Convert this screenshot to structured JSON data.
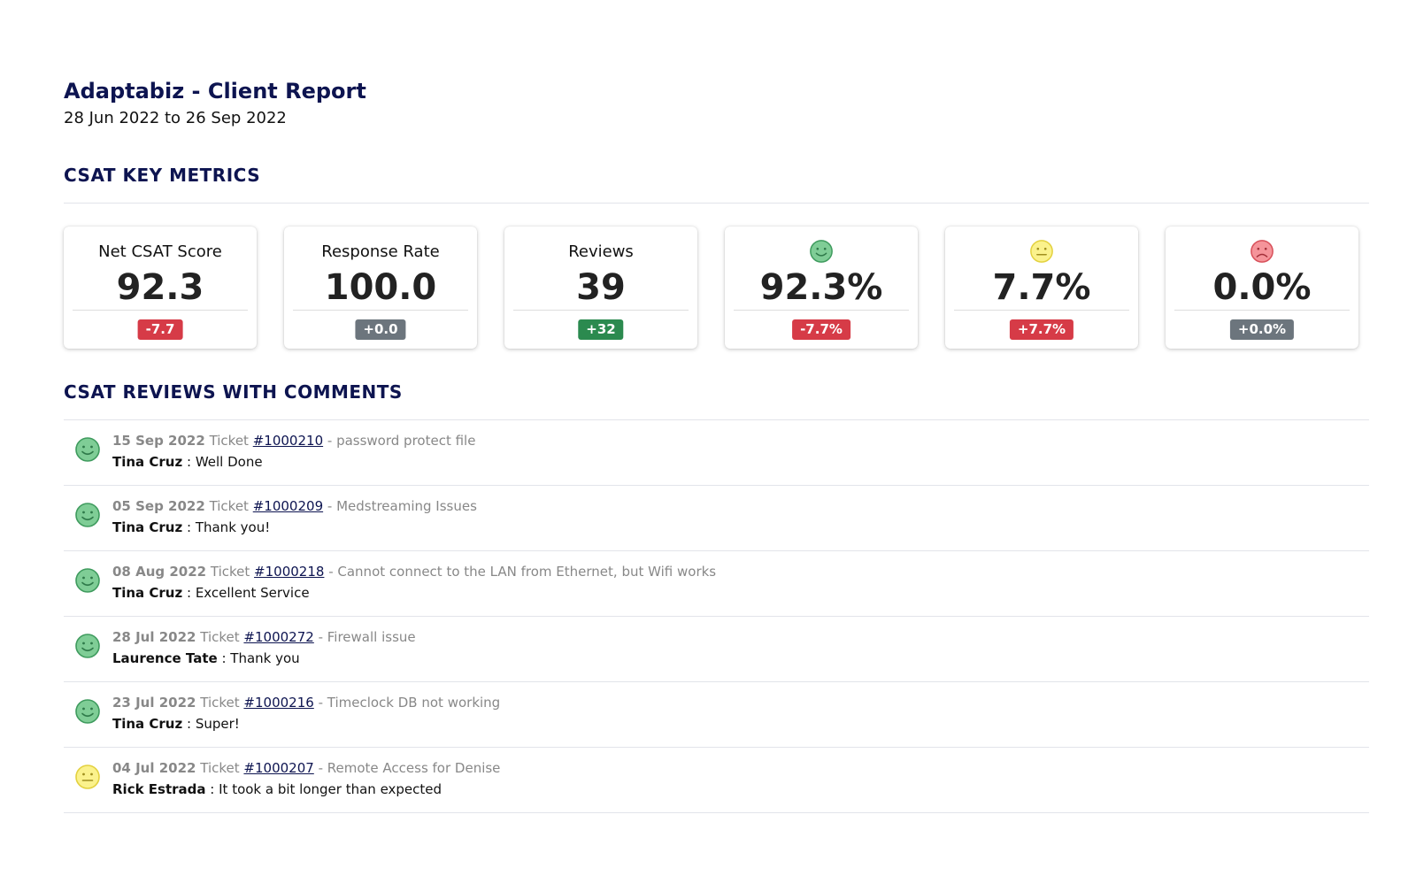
{
  "header": {
    "title": "Adaptabiz - Client Report",
    "date_range": "28 Jun 2022 to 26 Sep 2022"
  },
  "metrics_section": {
    "title": "CSAT KEY METRICS",
    "cards": [
      {
        "label": "Net CSAT Score",
        "value": "92.3",
        "delta": "-7.7",
        "delta_color": "#d63b47"
      },
      {
        "label": "Response Rate",
        "value": "100.0",
        "delta": "+0.0",
        "delta_color": "#6c757d"
      },
      {
        "label": "Reviews",
        "value": "39",
        "delta": "+32",
        "delta_color": "#2b8a4f"
      },
      {
        "icon": "happy-face-icon",
        "value": "92.3%",
        "delta": "-7.7%",
        "delta_color": "#d63b47"
      },
      {
        "icon": "neutral-face-icon",
        "value": "7.7%",
        "delta": "+7.7%",
        "delta_color": "#d63b47"
      },
      {
        "icon": "sad-face-icon",
        "value": "0.0%",
        "delta": "+0.0%",
        "delta_color": "#6c757d"
      }
    ]
  },
  "reviews_section": {
    "title": "CSAT REVIEWS WITH COMMENTS",
    "ticket_word": "Ticket",
    "items": [
      {
        "icon": "happy-face-icon",
        "date": "15 Sep 2022",
        "ticket": "#1000210",
        "subject": "- password protect file",
        "name": "Tina Cruz",
        "comment": ": Well Done"
      },
      {
        "icon": "happy-face-icon",
        "date": "05 Sep 2022",
        "ticket": "#1000209",
        "subject": "- Medstreaming Issues",
        "name": "Tina Cruz",
        "comment": ": Thank you!"
      },
      {
        "icon": "happy-face-icon",
        "date": "08 Aug 2022",
        "ticket": "#1000218",
        "subject": "- Cannot connect to the LAN from Ethernet, but Wifi works",
        "name": "Tina Cruz",
        "comment": ": Excellent Service"
      },
      {
        "icon": "happy-face-icon",
        "date": "28 Jul 2022",
        "ticket": "#1000272",
        "subject": "- Firewall issue",
        "name": "Laurence Tate",
        "comment": ": Thank you"
      },
      {
        "icon": "happy-face-icon",
        "date": "23 Jul 2022",
        "ticket": "#1000216",
        "subject": "- Timeclock DB not working",
        "name": "Tina Cruz",
        "comment": ": Super!"
      },
      {
        "icon": "neutral-face-icon",
        "date": "04 Jul 2022",
        "ticket": "#1000207",
        "subject": "- Remote Access for Denise",
        "name": "Rick Estrada",
        "comment": ": It took a bit longer than expected"
      }
    ]
  },
  "colors": {
    "heading": "#0d1450",
    "happy": "#6cc086",
    "neutral": "#f7ec7a",
    "sad": "#f2828a"
  }
}
